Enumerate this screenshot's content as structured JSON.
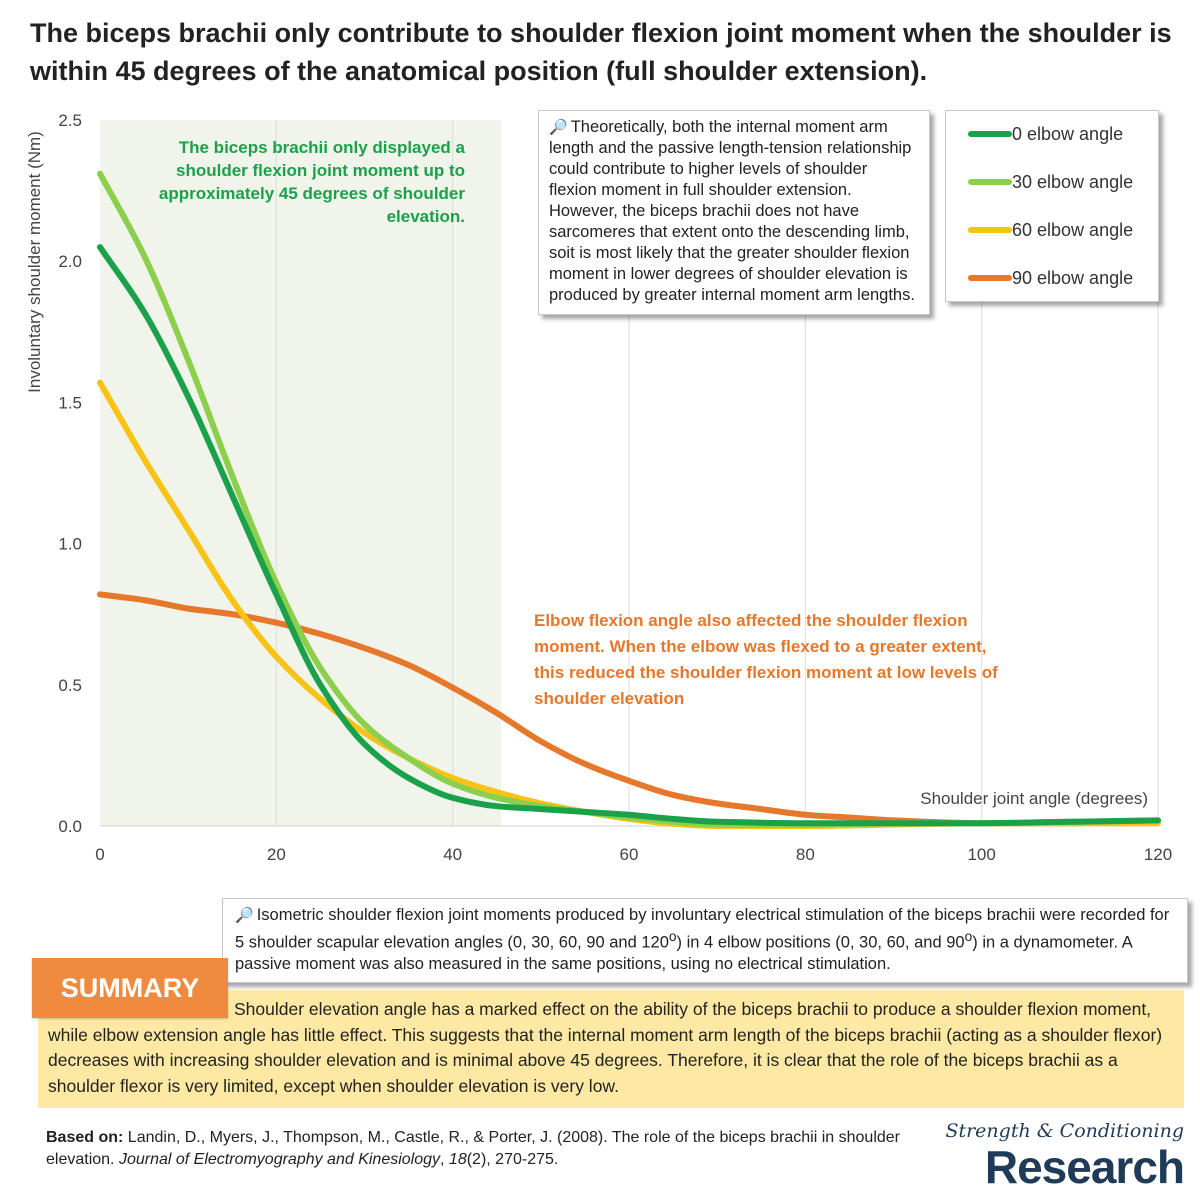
{
  "title": "The biceps brachii only contribute to shoulder flexion joint moment when the shoulder is within 45 degrees of the anatomical position (full shoulder extension).",
  "chart_data": {
    "type": "line",
    "title": "",
    "xlabel": "Shoulder joint angle  (degrees)",
    "ylabel": "Involuntary shoulder moment (Nm)",
    "xlim": [
      0,
      120
    ],
    "ylim": [
      0,
      2.5
    ],
    "xticks": [
      0,
      20,
      40,
      60,
      80,
      100,
      120
    ],
    "yticks": [
      0.0,
      0.5,
      1.0,
      1.5,
      2.0,
      2.5
    ],
    "ytick_labels": [
      "0.0",
      "0.5",
      "1.0",
      "1.5",
      "2.0",
      "2.5"
    ],
    "grid": "vertical",
    "shaded_region": {
      "x": [
        0,
        45.5
      ],
      "color": "#f0f4ea"
    },
    "legend_position": "top-right",
    "series": [
      {
        "name": "0 elbow angle",
        "color": "#1aa14a",
        "x": [
          0,
          5,
          10,
          15,
          20,
          25,
          30,
          35,
          40,
          45,
          50,
          55,
          60,
          65,
          70,
          80,
          90,
          100,
          110,
          120
        ],
        "y": [
          2.05,
          1.82,
          1.52,
          1.17,
          0.82,
          0.5,
          0.29,
          0.17,
          0.1,
          0.07,
          0.06,
          0.05,
          0.04,
          0.025,
          0.015,
          0.01,
          0.01,
          0.01,
          0.015,
          0.02
        ]
      },
      {
        "name": "30 elbow angle",
        "color": "#8ccf4d",
        "x": [
          0,
          5,
          10,
          15,
          20,
          25,
          30,
          35,
          40,
          45,
          50,
          55,
          60,
          65,
          70,
          80,
          90,
          100,
          110,
          120
        ],
        "y": [
          2.31,
          2.02,
          1.65,
          1.24,
          0.86,
          0.56,
          0.36,
          0.24,
          0.15,
          0.1,
          0.07,
          0.05,
          0.03,
          0.015,
          0.005,
          0.005,
          0.01,
          0.01,
          0.015,
          0.02
        ]
      },
      {
        "name": "60 elbow angle",
        "color": "#f8c315",
        "x": [
          0,
          5,
          10,
          15,
          20,
          25,
          30,
          35,
          40,
          45,
          50,
          55,
          60,
          65,
          70,
          80,
          90,
          100,
          110,
          120
        ],
        "y": [
          1.57,
          1.3,
          1.05,
          0.8,
          0.6,
          0.45,
          0.33,
          0.24,
          0.17,
          0.12,
          0.08,
          0.05,
          0.025,
          0.008,
          0.0,
          0.0,
          0.005,
          0.01,
          0.01,
          0.01
        ]
      },
      {
        "name": "90 elbow angle",
        "color": "#e5782a",
        "x": [
          0,
          5,
          10,
          15,
          20,
          25,
          30,
          35,
          40,
          45,
          50,
          55,
          60,
          65,
          70,
          75,
          80,
          85,
          90,
          100,
          110,
          120
        ],
        "y": [
          0.82,
          0.8,
          0.77,
          0.75,
          0.72,
          0.68,
          0.63,
          0.57,
          0.49,
          0.4,
          0.3,
          0.22,
          0.16,
          0.11,
          0.08,
          0.06,
          0.04,
          0.03,
          0.02,
          0.01,
          0.01,
          0.02
        ]
      }
    ]
  },
  "annotations": {
    "green": "The biceps brachii only displayed a shoulder flexion joint moment up to approximately 45 degrees of shoulder elevation.",
    "orange": "Elbow flexion angle also affected the shoulder flexion moment. When the elbow was flexed to a greater extent, this reduced the shoulder flexion moment at low levels of shoulder elevation"
  },
  "callouts": {
    "magnifier_icon": "magnifier-icon",
    "theory": "Theoretically, both the internal moment arm length and the passive length-tension relationship could contribute to higher levels of shoulder flexion moment in full shoulder extension. However, the biceps brachii does not have sarcomeres that extent onto the descending limb, soit is most likely that the greater shoulder flexion moment in lower degrees of shoulder elevation is produced by greater internal moment arm lengths.",
    "method_part1": "Isometric shoulder flexion joint moments produced by involuntary electrical stimulation of the biceps brachii were recorded for 5 shoulder scapular elevation angles (0, 30, 60, 90 and 120",
    "method_sup1": "o",
    "method_part2": ") in 4 elbow positions (0, 30, 60, and 90",
    "method_sup2": "o",
    "method_part3": ") in a dynamometer. A passive moment was also measured in the same positions, using no electrical stimulation."
  },
  "summary": {
    "label": "SUMMARY",
    "text": "Shoulder elevation angle has a marked effect on the ability of the biceps brachii to produce a shoulder flexion moment, while elbow extension angle has little effect. This suggests that the internal moment arm length of the biceps brachii (acting as a shoulder flexor) decreases with increasing shoulder elevation and is minimal above 45 degrees. Therefore, it is clear that the role of the biceps brachii as a shoulder flexor is very limited, except when shoulder elevation is very low."
  },
  "source": {
    "label": "Based on:",
    "authors": "Landin, D., Myers, J., Thompson, M., Castle, R., & Porter, J. (2008). The role of the biceps brachii in shoulder elevation.",
    "journal": "Journal of Electromyography and Kinesiology",
    "volume": "18",
    "issue_pages": "(2), 270-275."
  },
  "brand": {
    "line1": "Strength & Conditioning",
    "line2": "Research"
  }
}
